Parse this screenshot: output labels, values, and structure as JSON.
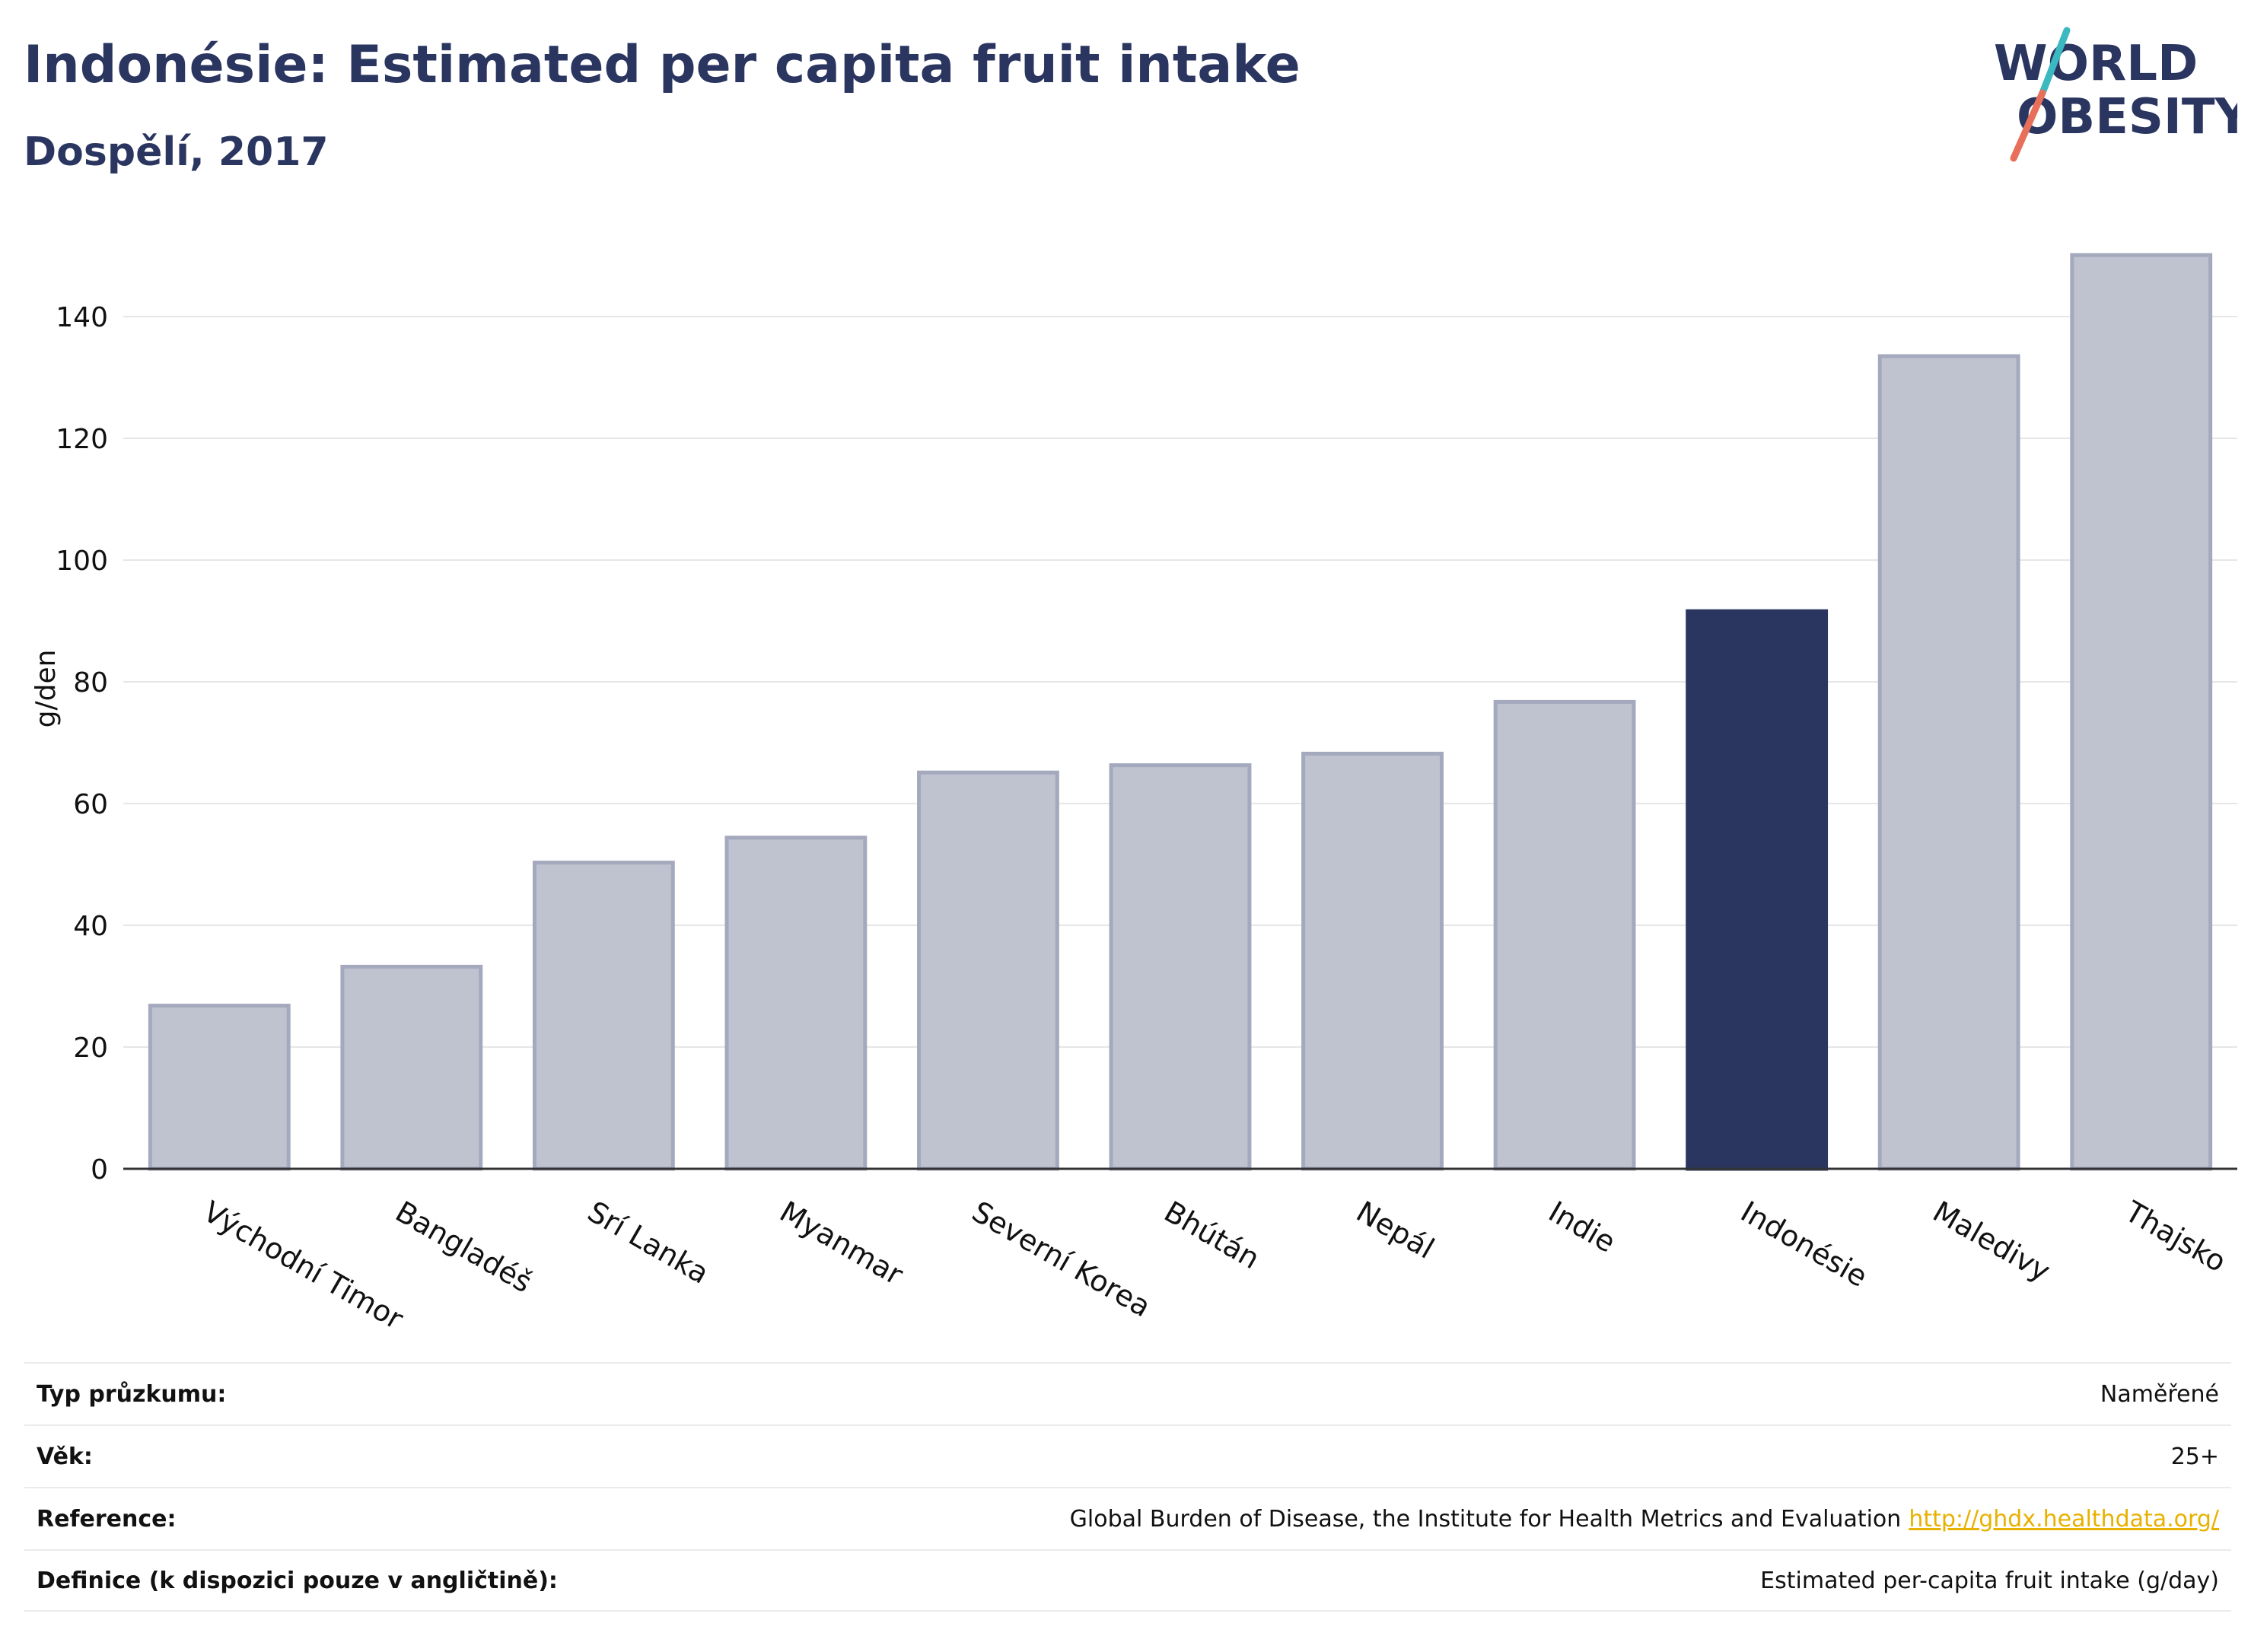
{
  "header": {
    "title": "Indonésie: Estimated per capita fruit intake",
    "subtitle": "Dospělí, 2017"
  },
  "logo": {
    "line1": "WORLD",
    "line2": "OBESITY",
    "colors": {
      "text": "#2a3560",
      "slash_top": "#3bb8c0",
      "slash_bottom": "#e8705a"
    }
  },
  "colors": {
    "bar_default": "#bfc3d0",
    "bar_default_border": "#a4a9bd",
    "bar_highlight": "#2a3560",
    "grid": "#e6e6e6",
    "axis": "#333333",
    "link": "#e8b100"
  },
  "chart_data": {
    "type": "bar",
    "categories": [
      "Východní Timor",
      "Bangladéš",
      "Srí Lanka",
      "Myanmar",
      "Severní Korea",
      "Bhútán",
      "Nepál",
      "Indie",
      "Indonésie",
      "Maledivy",
      "Thajsko"
    ],
    "values": [
      26.8,
      33.2,
      50.3,
      54.4,
      65.1,
      66.3,
      68.2,
      76.7,
      91.6,
      133.5,
      150.1
    ],
    "highlight": "Indonésie",
    "ylabel": "g/den",
    "xlabel": "",
    "ylim": [
      0,
      152
    ],
    "yticks": [
      0,
      20,
      40,
      60,
      80,
      100,
      120,
      140
    ],
    "grid": true,
    "legend": "none"
  },
  "info": {
    "rows": [
      {
        "label": "Typ průzkumu:",
        "value": "Naměřené"
      },
      {
        "label": "Věk:",
        "value": "25+"
      },
      {
        "label": "Reference:",
        "value": "Global Burden of Disease, the Institute for Health Metrics and Evaluation",
        "link": "http://ghdx.healthdata.org/"
      },
      {
        "label": "Definice (k dispozici pouze v angličtině):",
        "value": "Estimated per-capita fruit intake (g/day)"
      }
    ]
  }
}
